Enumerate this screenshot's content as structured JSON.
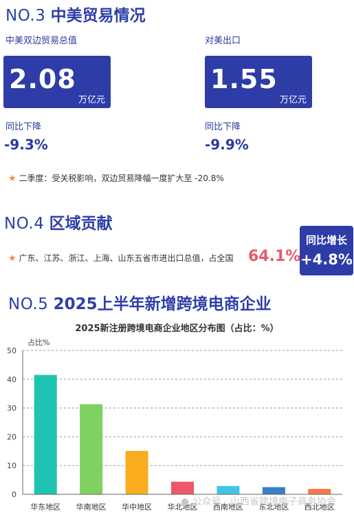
{
  "sections": {
    "s3": {
      "no": "NO.3",
      "title": "中美贸易情况"
    },
    "s4": {
      "no": "NO.4",
      "title": "区域贡献"
    },
    "s5": {
      "no": "NO.5",
      "title": "2025上半年新增跨境电商企业"
    }
  },
  "trade": {
    "bilateral": {
      "label": "中美双边贸易总值",
      "value": "2.08",
      "unit": "万亿元",
      "change_label": "同比下降",
      "change": "-9.3%"
    },
    "export": {
      "label": "对美出口",
      "value": "1.55",
      "unit": "万亿元",
      "change_label": "同比下降",
      "change": "-9.9%"
    },
    "note": "二季度：受关税影响，双边贸易降幅一度扩大至 -20.8%"
  },
  "region": {
    "note": "广东、江苏、浙江、上海、山东五省市进出口总值，占全国",
    "share": "64.1%",
    "growth_label": "同比增长",
    "growth": "+4.8%"
  },
  "icons": {
    "note_star": "star-icon",
    "region_star": "star-icon"
  },
  "colors": {
    "accent": "#2e3ca8",
    "highlight": "#e8596e",
    "star": "#f08a3c"
  },
  "chart_data": {
    "type": "bar",
    "title": "2025新注册跨境电商企业地区分布图（占比：%）",
    "ylabel": "占比%",
    "xlabel": "",
    "ylim": [
      0,
      50
    ],
    "yticks": [
      0,
      10,
      20,
      30,
      40,
      50
    ],
    "grid": true,
    "categories": [
      "华东地区",
      "华南地区",
      "华中地区",
      "华北地区",
      "西南地区",
      "东北地区",
      "西北地区"
    ],
    "values": [
      41.5,
      31.3,
      15.1,
      4.4,
      2.9,
      2.5,
      1.9
    ],
    "colors": [
      "#1fc3b1",
      "#7fd25f",
      "#f9ad1e",
      "#f0566b",
      "#3fc7e8",
      "#3a7fc6",
      "#f7774a"
    ]
  },
  "watermark": "公众号 · 山西省跨境电子商务协会"
}
